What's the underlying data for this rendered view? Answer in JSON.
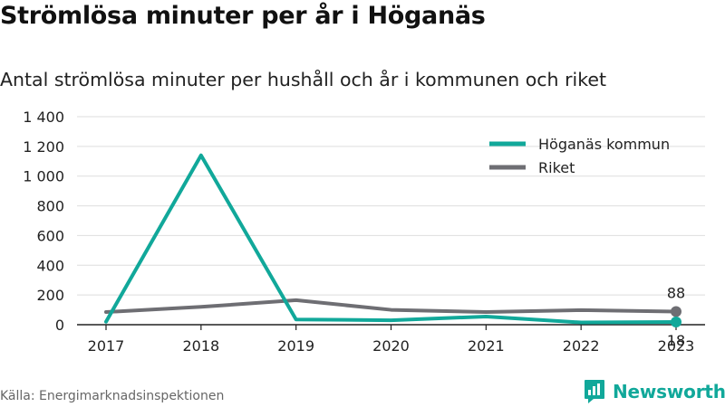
{
  "header": {
    "title": "Strömlösa minuter per år i Höganäs",
    "subtitle": "Antal strömlösa minuter per hushåll och år i kommunen och riket"
  },
  "footer": {
    "source": "Källa: Energimarknadsinspektionen",
    "brand": "Newsworthy"
  },
  "chart_data": {
    "type": "line",
    "title": "Strömlösa minuter per år i Höganäs",
    "subtitle": "Antal strömlösa minuter per hushåll och år i kommunen och riket",
    "x": [
      "2017",
      "2018",
      "2019",
      "2020",
      "2021",
      "2022",
      "2023"
    ],
    "y_ticks": [
      0,
      200,
      400,
      600,
      800,
      1000,
      1200,
      1400
    ],
    "y_tick_labels": [
      "0",
      "200",
      "400",
      "600",
      "800",
      "1 000",
      "1 200",
      "1 400"
    ],
    "ylim": [
      0,
      1400
    ],
    "grid": true,
    "legend_position": "top-right",
    "series": [
      {
        "name": "Höganäs kommun",
        "color": "#11a89a",
        "values": [
          20,
          1140,
          35,
          30,
          55,
          15,
          18
        ],
        "end_label": "18"
      },
      {
        "name": "Riket",
        "color": "#6e6e73",
        "values": [
          85,
          120,
          165,
          100,
          85,
          98,
          88
        ],
        "end_label": "88"
      }
    ]
  }
}
